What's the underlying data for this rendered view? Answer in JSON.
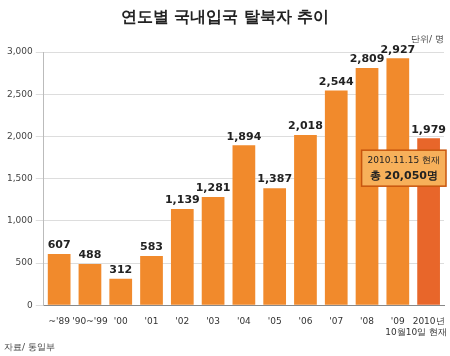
{
  "chart_data": {
    "type": "bar",
    "title": "연도별 국내입국 탈북자 추이",
    "ylabel": "단위/ 명",
    "source": "자료/ 통일부",
    "categories": [
      "~'89",
      "'90~'99",
      "'00",
      "'01",
      "'02",
      "'03",
      "'04",
      "'05",
      "'06",
      "'07",
      "'08",
      "'09",
      "2010년"
    ],
    "values": [
      607,
      488,
      312,
      583,
      1139,
      1281,
      1894,
      1387,
      2018,
      2544,
      2809,
      2927,
      1979
    ],
    "value_labels": [
      "607",
      "488",
      "312",
      "583",
      "1,139",
      "1,281",
      "1,894",
      "1,387",
      "2,018",
      "2,544",
      "2,809",
      "2,927",
      "1,979"
    ],
    "colors": [
      "#f18a2c",
      "#f18a2c",
      "#f18a2c",
      "#f18a2c",
      "#f18a2c",
      "#f18a2c",
      "#f18a2c",
      "#f18a2c",
      "#f18a2c",
      "#f18a2c",
      "#f18a2c",
      "#f18a2c",
      "#e8662a"
    ],
    "ylim": [
      0,
      3000
    ],
    "yticks": [
      0,
      500,
      {
        "value": 1000,
        "label": "1,000"
      },
      {
        "value": 1500,
        "label": "1,500"
      },
      {
        "value": 2000,
        "label": "2,000"
      },
      {
        "value": 2500,
        "label": "2,500"
      },
      {
        "value": 3000,
        "label": "3,000"
      }
    ],
    "grid": true,
    "data_labels": true,
    "annotations": [
      {
        "category": "2010년",
        "lines": [
          "2010.11.15 현재",
          "총 20,050명"
        ]
      },
      {
        "category": "2010년",
        "text": "10월10일 현재"
      }
    ]
  }
}
